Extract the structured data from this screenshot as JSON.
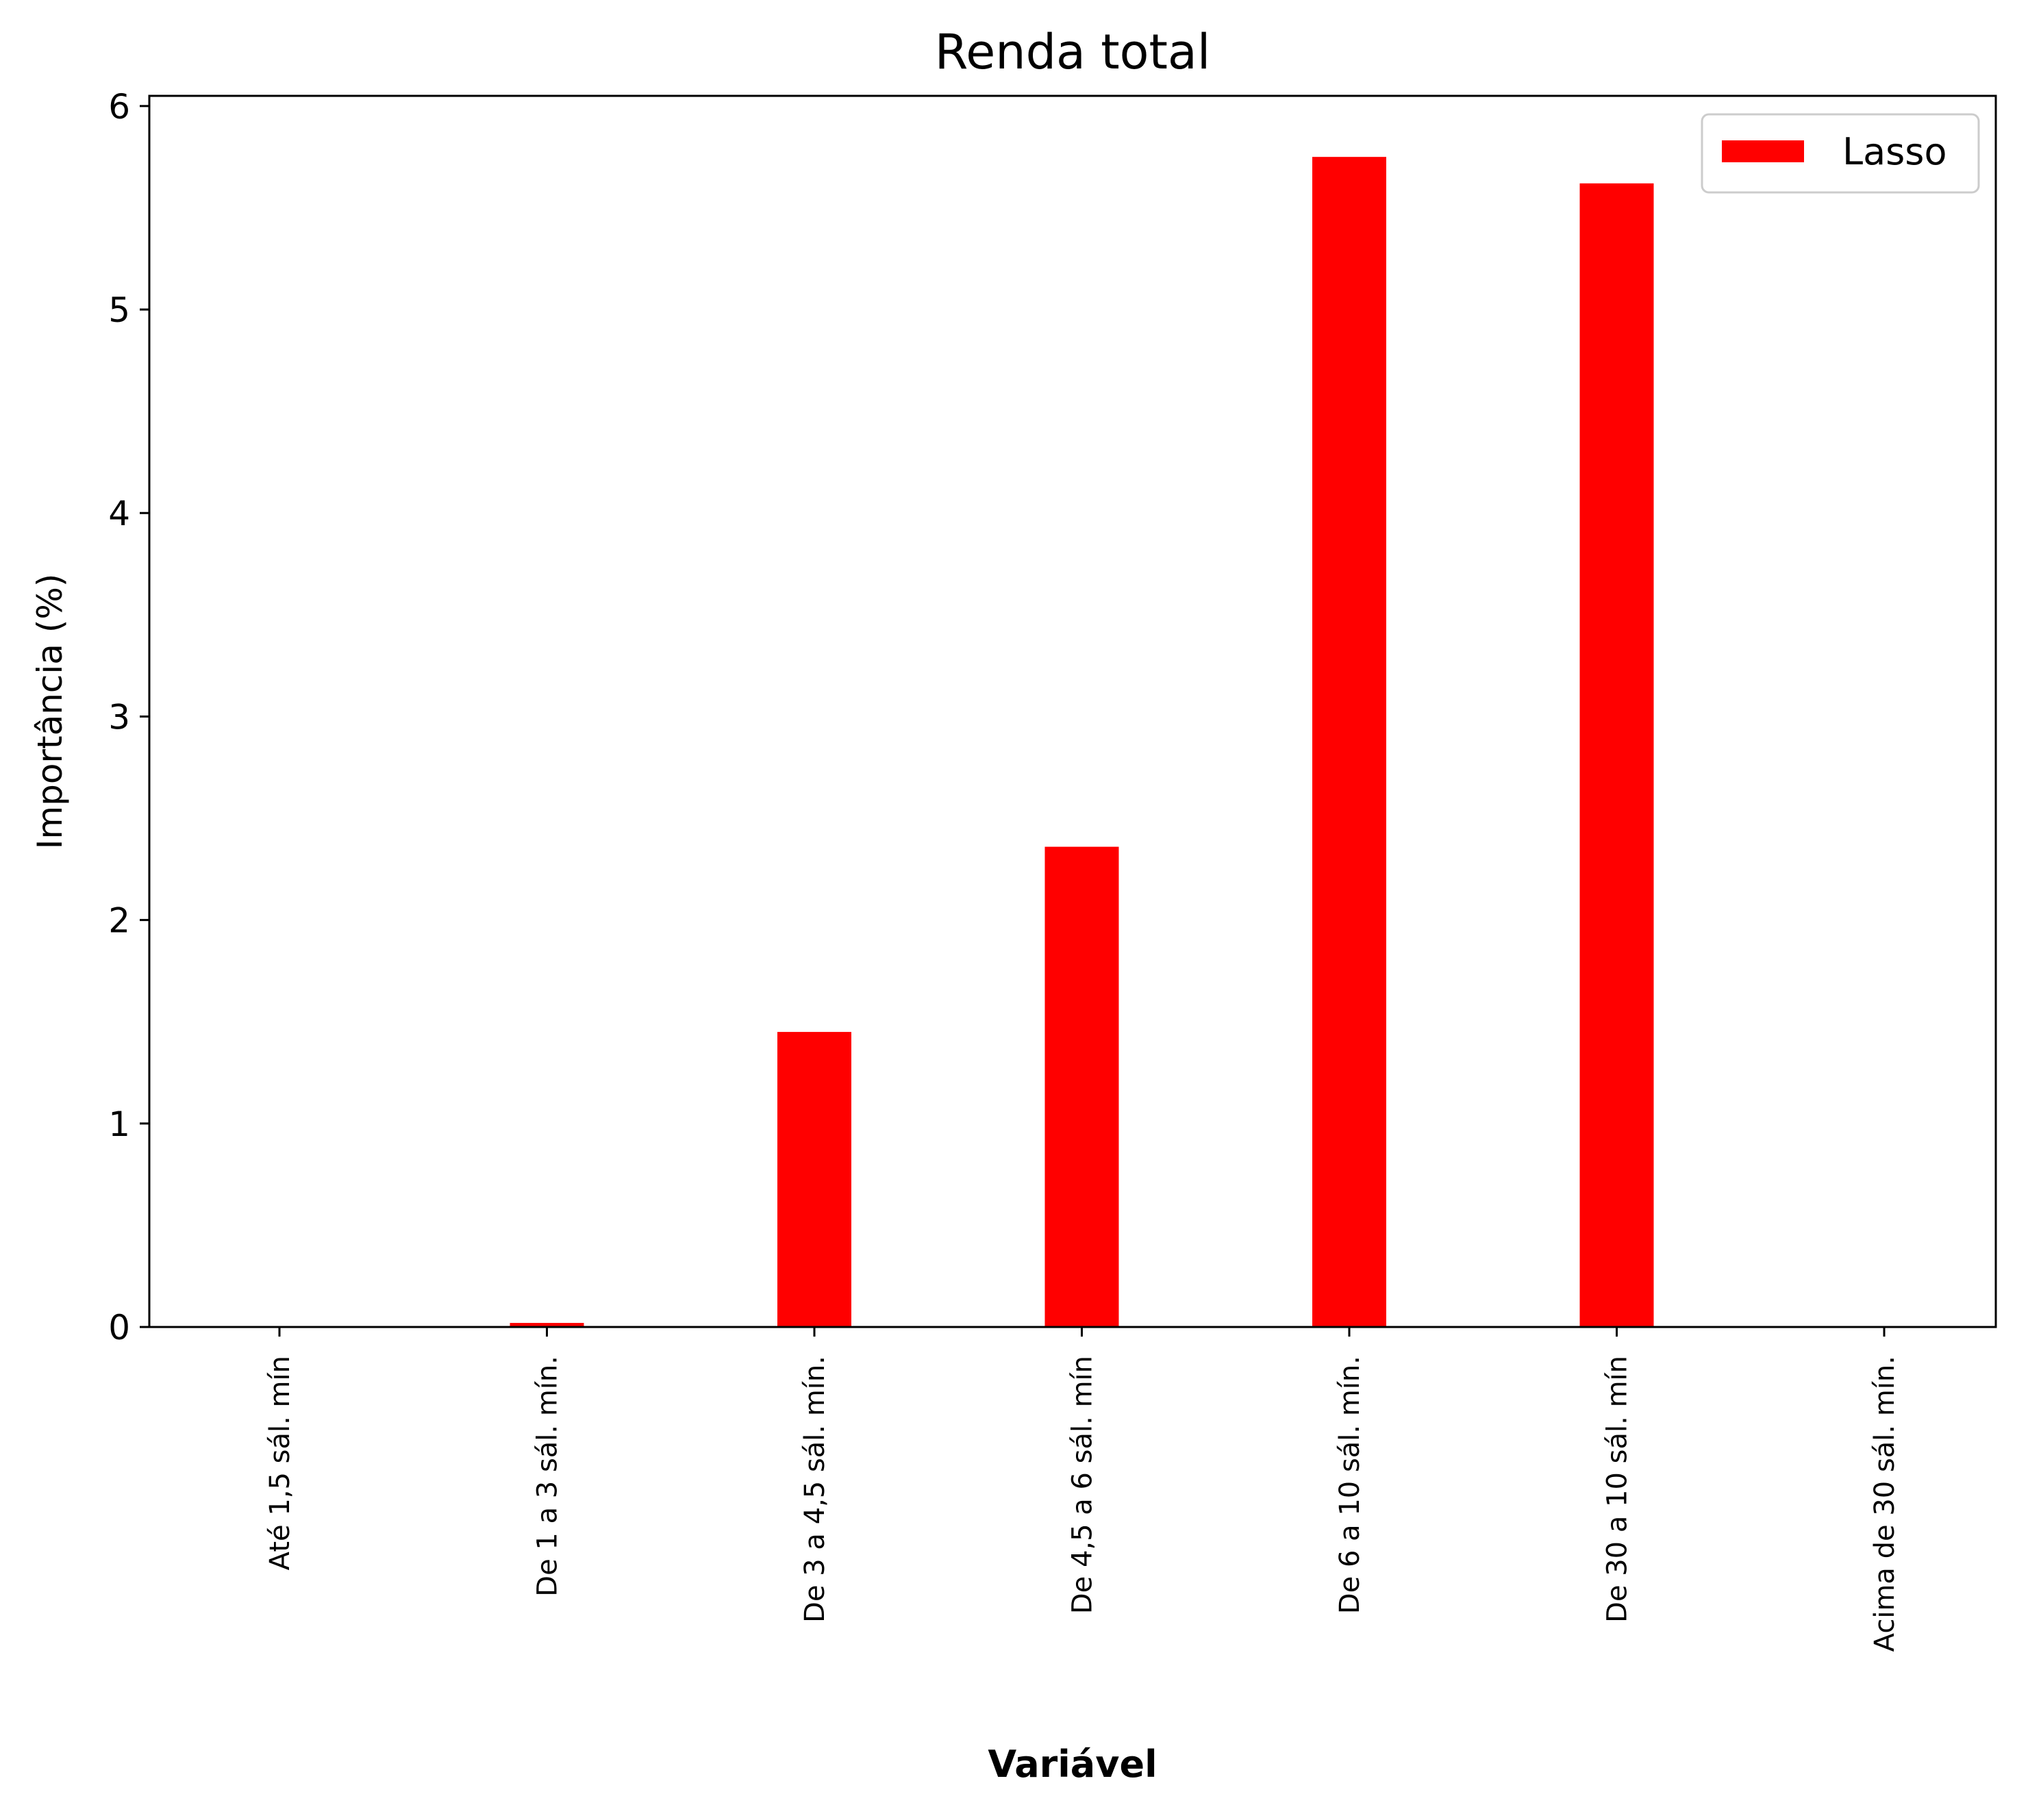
{
  "chart_data": {
    "type": "bar",
    "title": "Renda total",
    "xlabel": "Variável",
    "ylabel": "Importância (%)",
    "categories": [
      "Até 1,5 sál. mín",
      "De 1 a 3 sál. mín.",
      "De 3 a 4,5 sál. mín.",
      "De 4,5 a 6 sál. mín",
      "De 6 a 10 sál. mín.",
      "De 30 a 10 sál. mín",
      "Acima de 30 sál. mín."
    ],
    "series": [
      {
        "name": "Lasso",
        "color": "#ff0000",
        "values": [
          0.0,
          0.02,
          1.45,
          2.36,
          5.75,
          5.62,
          0.0
        ]
      }
    ],
    "ylim": [
      0,
      6.05
    ],
    "yticks": [
      "0",
      "1",
      "2",
      "3",
      "4",
      "5",
      "6"
    ],
    "grid": false,
    "legend_position": "top-right"
  }
}
